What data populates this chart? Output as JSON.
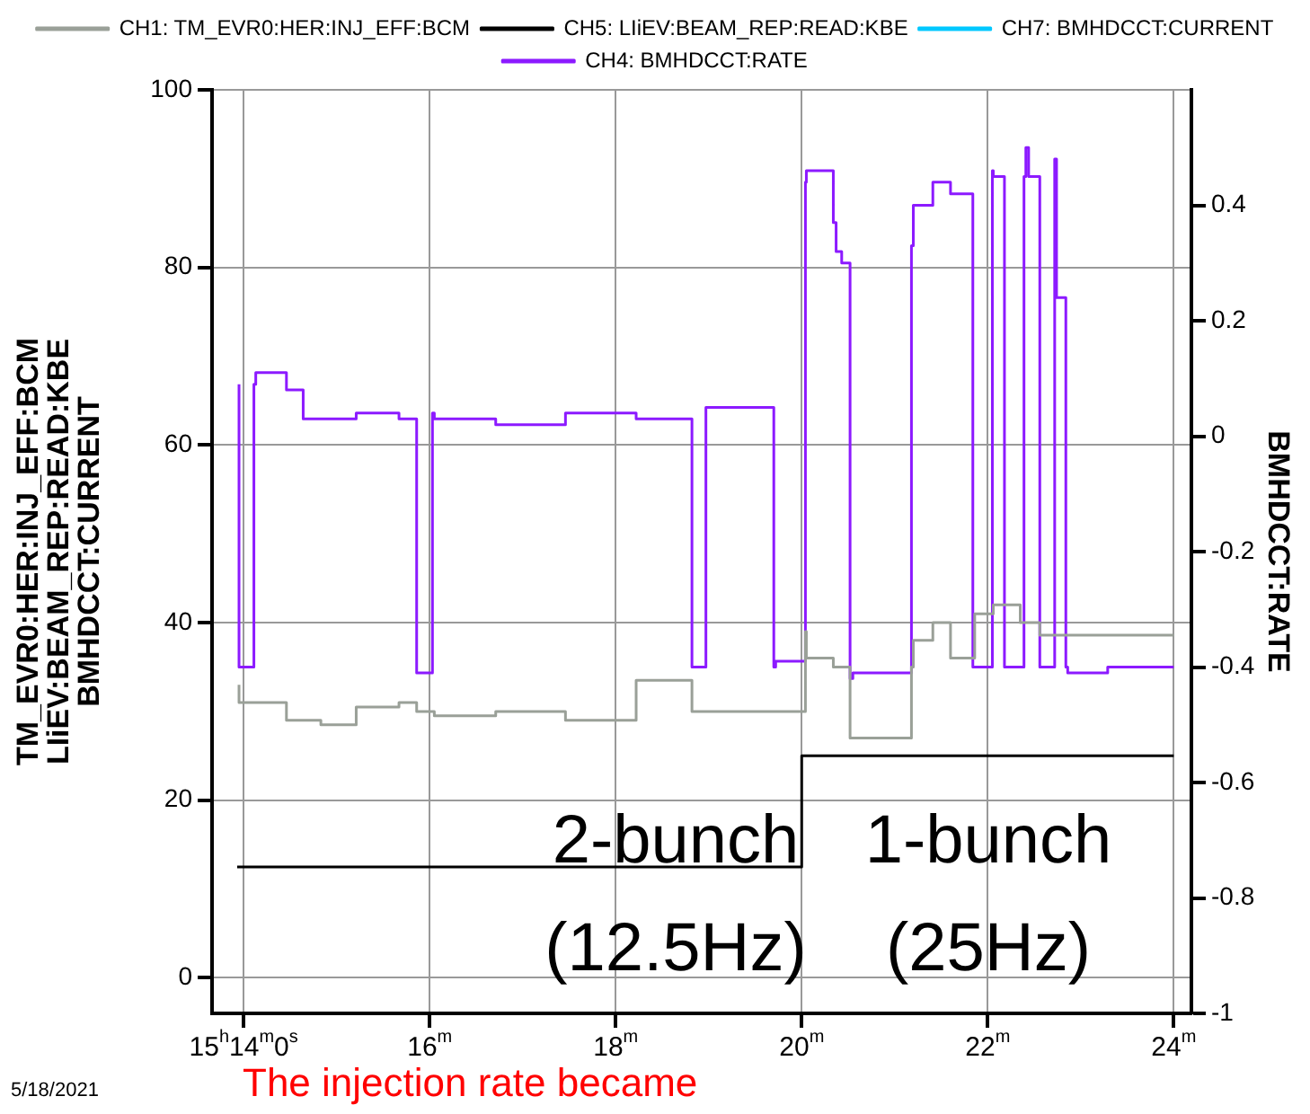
{
  "chart_data": {
    "type": "step",
    "series": [
      {
        "name": "CH1: TM_EVR0:HER:INJ_EFF:BCM",
        "color": "#9aa098",
        "x": [
          13.95,
          14.46,
          14.83,
          15.21,
          15.67,
          15.86,
          16.05,
          16.71,
          17.46,
          18.22,
          18.82,
          19.34,
          19.72,
          20.04,
          20.05,
          20.34,
          20.52,
          20.55,
          21.18,
          21.2,
          21.41,
          21.6,
          21.86,
          22.06,
          22.35,
          22.56,
          22.8,
          24.0
        ],
        "values": [
          33,
          31,
          29,
          28.5,
          30.5,
          31,
          30,
          29.5,
          30,
          29,
          33.5,
          30,
          30,
          30,
          39,
          36,
          35,
          27,
          27,
          35,
          38,
          40,
          36,
          41,
          42,
          40,
          38.6,
          38.6
        ]
      },
      {
        "name": "CH5: LIiEV:BEAM_REP:READ:KBE",
        "color": "#000000",
        "x": [
          13.93,
          20.0,
          20.01,
          24.0
        ],
        "values": [
          12.5,
          12.5,
          25,
          25
        ]
      },
      {
        "name": "CH7: BMHDCCT:CURRENT",
        "color": "#00c8ff"
      },
      {
        "name": "CH4: BMHDCCT:RATE",
        "color": "#8c1aff",
        "axis": "y2",
        "x": [
          13.95,
          13.96,
          14.11,
          14.13,
          14.46,
          14.64,
          14.83,
          15.21,
          15.67,
          15.86,
          15.88,
          16.03,
          16.05,
          16.71,
          17.46,
          18.22,
          18.82,
          18.84,
          18.97,
          18.99,
          19.7,
          19.72,
          20.04,
          20.05,
          20.34,
          20.37,
          20.43,
          20.52,
          20.55,
          21.18,
          21.2,
          21.41,
          21.6,
          21.84,
          21.86,
          22.05,
          22.06,
          22.18,
          22.2,
          22.39,
          22.41,
          22.44,
          22.56,
          22.57,
          22.72,
          22.74,
          22.8,
          22.84,
          22.86,
          23.29,
          24.0
        ],
        "values": [
          0.09,
          -0.4,
          -0.4,
          0.09,
          0.11,
          0.08,
          0.03,
          0.03,
          0.04,
          0.03,
          -0.41,
          -0.41,
          0.04,
          0.03,
          0.02,
          0.04,
          0.03,
          -0.4,
          -0.4,
          0.05,
          0.05,
          -0.4,
          -0.39,
          0.44,
          0.46,
          0.37,
          0.32,
          0.3,
          -0.42,
          -0.41,
          0.33,
          0.4,
          0.44,
          0.42,
          -0.4,
          -0.4,
          0.46,
          0.45,
          -0.4,
          -0.4,
          0.45,
          0.5,
          0.45,
          -0.4,
          -0.4,
          0.48,
          0.24,
          0.24,
          -0.4,
          -0.41,
          -0.4
        ]
      }
    ],
    "xlim": [
      13.66,
      24.19
    ],
    "xticks": [
      {
        "value": 14,
        "label": "15$^{h}$14$^{m}$0$^{s}$"
      },
      {
        "value": 16,
        "label": "16$^{m}$"
      },
      {
        "value": 18,
        "label": "18$^{m}$"
      },
      {
        "value": 20,
        "label": "20$^{m}$"
      },
      {
        "value": 22,
        "label": "22$^{m}$"
      },
      {
        "value": 24,
        "label": "24$^{m}$"
      }
    ],
    "ylim": [
      -4,
      100
    ],
    "yticks": [
      0,
      20,
      40,
      60,
      80,
      100
    ],
    "y2lim": [
      -1,
      0.6
    ],
    "y2ticks": [
      -1,
      -0.8,
      -0.6,
      -0.4,
      -0.2,
      0,
      0.2,
      0.4
    ],
    "ylabel": "TM_EVR0:HER:INJ_EFF:BCM\nLIiEV:BEAM_REP:READ:KBE\nBMHDCCT:CURRENT",
    "y2label": "BMHDCCT:RATE",
    "annotations": [
      "2-bunch",
      "(12.5Hz)",
      "1-bunch",
      "(25Hz)",
      "5/18/2021",
      "The injection rate became"
    ],
    "grid": true,
    "legend": "top"
  }
}
